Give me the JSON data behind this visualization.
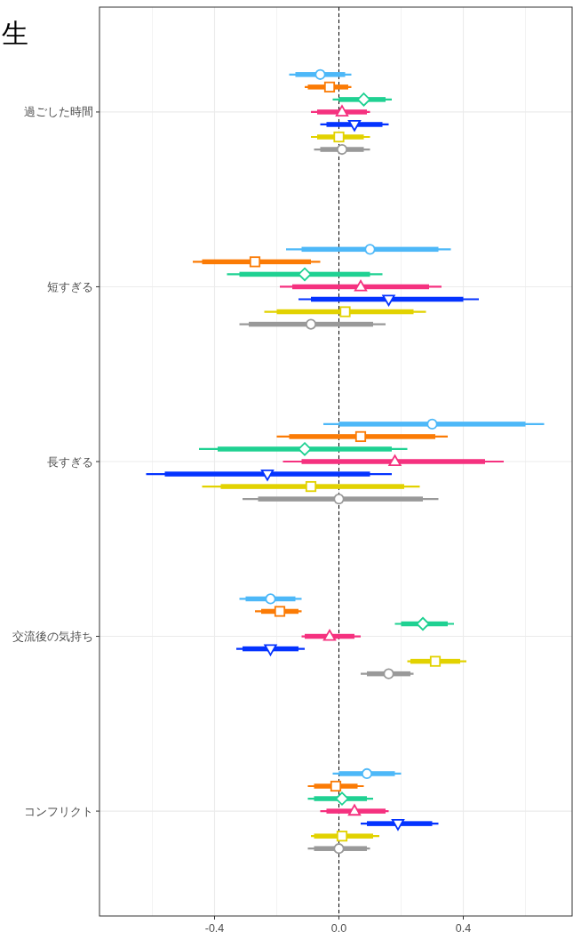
{
  "chart_data": {
    "type": "box",
    "orientation": "horizontal",
    "title": "生",
    "categories": [
      "過ごした時間",
      "短すぎる",
      "長すぎる",
      "交流後の気持ち",
      "コンフリクト"
    ],
    "xlim": [
      -0.77,
      0.75
    ],
    "xticks": [
      {
        "value": -0.6,
        "label": null
      },
      -0.4,
      {
        "value": -0.2,
        "label": null
      },
      {
        "value": 0.0,
        "label": "0.0"
      },
      {
        "value": 0.2,
        "label": null
      },
      0.4,
      {
        "value": 0.6,
        "label": null
      }
    ],
    "grid": true,
    "ref_lines": [
      {
        "axis": "x",
        "value": 0,
        "color": "#000000",
        "line_style": "dashed"
      }
    ],
    "series": [
      {
        "color": "#4db8f8",
        "marker": "circle",
        "boxes": [
          {
            "low": -0.16,
            "q1": -0.14,
            "median": -0.06,
            "q3": 0.02,
            "high": 0.04
          },
          {
            "low": -0.17,
            "q1": -0.12,
            "median": 0.1,
            "q3": 0.32,
            "high": 0.36
          },
          {
            "low": -0.05,
            "q1": 0.0,
            "median": 0.3,
            "q3": 0.6,
            "high": 0.66
          },
          {
            "low": -0.32,
            "q1": -0.3,
            "median": -0.22,
            "q3": -0.14,
            "high": -0.12
          },
          {
            "low": -0.02,
            "q1": 0.0,
            "median": 0.09,
            "q3": 0.18,
            "high": 0.2
          }
        ]
      },
      {
        "color": "#fb7b05",
        "marker": "square",
        "boxes": [
          {
            "low": -0.11,
            "q1": -0.1,
            "median": -0.03,
            "q3": 0.03,
            "high": 0.04
          },
          {
            "low": -0.47,
            "q1": -0.44,
            "median": -0.27,
            "q3": -0.09,
            "high": -0.06
          },
          {
            "low": -0.2,
            "q1": -0.16,
            "median": 0.07,
            "q3": 0.31,
            "high": 0.35
          },
          {
            "low": -0.27,
            "q1": -0.25,
            "median": -0.19,
            "q3": -0.13,
            "high": -0.12
          },
          {
            "low": -0.1,
            "q1": -0.08,
            "median": -0.01,
            "q3": 0.06,
            "high": 0.08
          }
        ]
      },
      {
        "color": "#1fd192",
        "marker": "diamond",
        "boxes": [
          {
            "low": -0.02,
            "q1": 0.0,
            "median": 0.08,
            "q3": 0.15,
            "high": 0.17
          },
          {
            "low": -0.36,
            "q1": -0.32,
            "median": -0.11,
            "q3": 0.1,
            "high": 0.14
          },
          {
            "low": -0.45,
            "q1": -0.39,
            "median": -0.11,
            "q3": 0.17,
            "high": 0.22
          },
          {
            "low": 0.18,
            "q1": 0.2,
            "median": 0.27,
            "q3": 0.35,
            "high": 0.37
          },
          {
            "low": -0.1,
            "q1": -0.08,
            "median": 0.01,
            "q3": 0.09,
            "high": 0.11
          }
        ]
      },
      {
        "color": "#f5317f",
        "marker": "triangle",
        "boxes": [
          {
            "low": -0.09,
            "q1": -0.07,
            "median": 0.01,
            "q3": 0.09,
            "high": 0.1
          },
          {
            "low": -0.19,
            "q1": -0.15,
            "median": 0.07,
            "q3": 0.29,
            "high": 0.33
          },
          {
            "low": -0.18,
            "q1": -0.12,
            "median": 0.18,
            "q3": 0.47,
            "high": 0.53
          },
          {
            "low": -0.12,
            "q1": -0.11,
            "median": -0.03,
            "q3": 0.05,
            "high": 0.07
          },
          {
            "low": -0.06,
            "q1": -0.04,
            "median": 0.05,
            "q3": 0.15,
            "high": 0.16
          }
        ]
      },
      {
        "color": "#0433ff",
        "marker": "triangle-down",
        "boxes": [
          {
            "low": -0.06,
            "q1": -0.04,
            "median": 0.05,
            "q3": 0.14,
            "high": 0.16
          },
          {
            "low": -0.13,
            "q1": -0.09,
            "median": 0.16,
            "q3": 0.4,
            "high": 0.45
          },
          {
            "low": -0.62,
            "q1": -0.56,
            "median": -0.23,
            "q3": 0.1,
            "high": 0.17
          },
          {
            "low": -0.33,
            "q1": -0.31,
            "median": -0.22,
            "q3": -0.13,
            "high": -0.11
          },
          {
            "low": 0.07,
            "q1": 0.09,
            "median": 0.19,
            "q3": 0.3,
            "high": 0.32
          }
        ]
      },
      {
        "color": "#e2d200",
        "marker": "square",
        "boxes": [
          {
            "low": -0.09,
            "q1": -0.07,
            "median": 0.0,
            "q3": 0.08,
            "high": 0.1
          },
          {
            "low": -0.24,
            "q1": -0.2,
            "median": 0.02,
            "q3": 0.24,
            "high": 0.28
          },
          {
            "low": -0.44,
            "q1": -0.38,
            "median": -0.09,
            "q3": 0.21,
            "high": 0.26
          },
          {
            "low": 0.22,
            "q1": 0.23,
            "median": 0.31,
            "q3": 0.39,
            "high": 0.41
          },
          {
            "low": -0.09,
            "q1": -0.08,
            "median": 0.01,
            "q3": 0.11,
            "high": 0.13
          }
        ]
      },
      {
        "color": "#999999",
        "marker": "circle",
        "boxes": [
          {
            "low": -0.08,
            "q1": -0.06,
            "median": 0.01,
            "q3": 0.08,
            "high": 0.1
          },
          {
            "low": -0.32,
            "q1": -0.29,
            "median": -0.09,
            "q3": 0.11,
            "high": 0.15
          },
          {
            "low": -0.31,
            "q1": -0.26,
            "median": 0.0,
            "q3": 0.27,
            "high": 0.32
          },
          {
            "low": 0.07,
            "q1": 0.09,
            "median": 0.16,
            "q3": 0.23,
            "high": 0.24
          },
          {
            "low": -0.1,
            "q1": -0.08,
            "median": 0.0,
            "q3": 0.09,
            "high": 0.1
          }
        ]
      }
    ]
  }
}
